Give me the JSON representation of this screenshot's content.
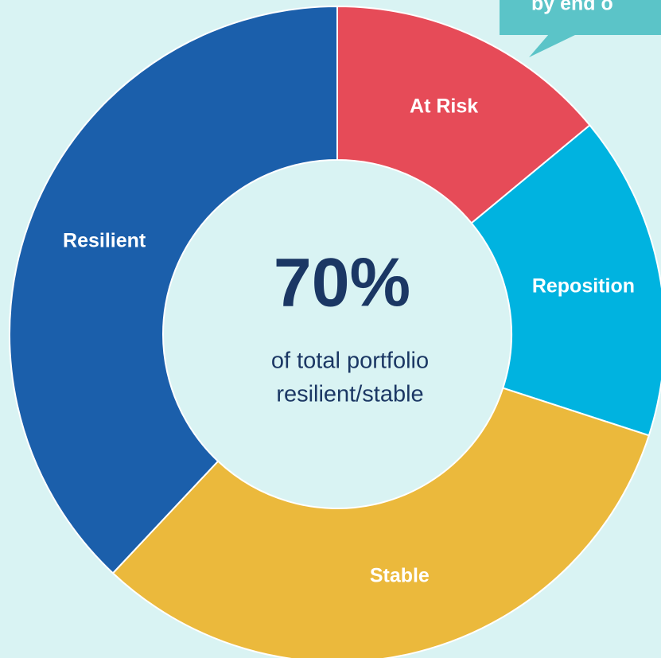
{
  "chart_data": {
    "type": "donut",
    "categories": [
      "At Risk",
      "Reposition",
      "Stable",
      "Resilient"
    ],
    "values": [
      14,
      16,
      32,
      38
    ],
    "colors": [
      "#e64b58",
      "#00b3e0",
      "#ebb93c",
      "#1b5fab"
    ],
    "center_value": "70%",
    "center_text": [
      "of total portfolio",
      "resilient/stable"
    ],
    "callout": "by end o"
  }
}
